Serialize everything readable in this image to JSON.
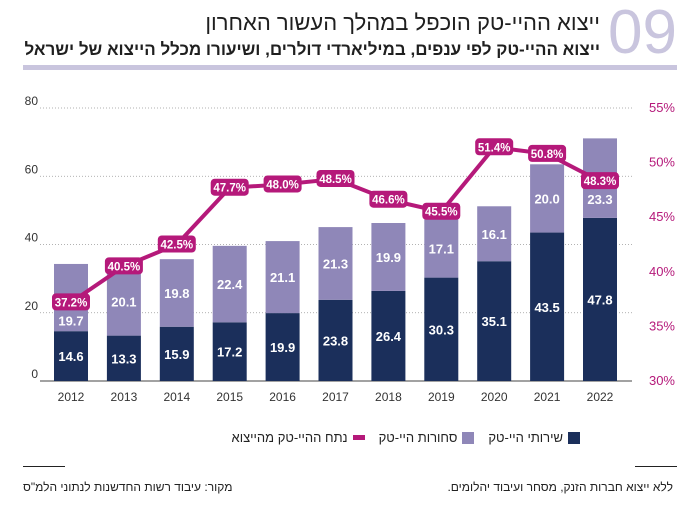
{
  "header": {
    "number": "09",
    "title": "ייצוא ההיי-טק הוכפל במהלך העשור האחרון",
    "subtitle": "ייצוא ההיי-טק לפי ענפים, במיליארדי דולרים, ושיעורו מכלל הייצוא של ישראל"
  },
  "colors": {
    "services": "#1b2f5b",
    "goods": "#8f87b8",
    "share": "#b5197a",
    "accent": "#c9c5de"
  },
  "chart_data": {
    "type": "bar",
    "stacked": true,
    "categories": [
      "2012",
      "2013",
      "2014",
      "2015",
      "2016",
      "2017",
      "2018",
      "2019",
      "2020",
      "2021",
      "2022"
    ],
    "series": [
      {
        "name": "שירותי היי-טק",
        "values": [
          14.6,
          13.3,
          15.9,
          17.2,
          19.9,
          23.8,
          26.4,
          30.3,
          35.1,
          43.5,
          47.8
        ]
      },
      {
        "name": "סחורות היי-טק",
        "values": [
          19.7,
          20.1,
          19.8,
          22.4,
          21.1,
          21.3,
          19.9,
          17.1,
          16.1,
          20.0,
          23.3
        ]
      },
      {
        "name": "נתח ההיי-טק מהייצוא",
        "type": "line",
        "axis": "right",
        "values": [
          37.2,
          40.5,
          42.5,
          47.7,
          48.0,
          48.5,
          46.6,
          45.5,
          51.4,
          50.8,
          48.3
        ]
      }
    ],
    "ylim": [
      0,
      80
    ],
    "yticks": [
      "0",
      "20",
      "40",
      "60",
      "80"
    ],
    "y2lim": [
      30,
      55
    ],
    "y2ticks": [
      "30%",
      "35%",
      "40%",
      "45%",
      "50%",
      "55%"
    ],
    "grid": true,
    "legend": "bottom"
  },
  "footer": {
    "note": "ללא ייצוא חברות הזנק, מסחר ועיבוד יהלומים.",
    "source": "מקור: עיבוד רשות החדשנות לנתוני הלמ\"ס"
  }
}
